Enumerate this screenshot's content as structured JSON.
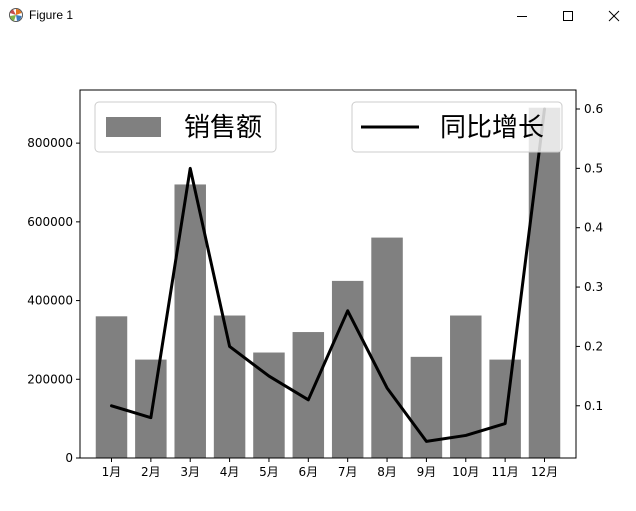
{
  "window": {
    "title": "Figure 1",
    "icon": "matplotlib-icon",
    "buttons": {
      "minimize": "minimize-icon",
      "maximize": "maximize-icon",
      "close": "close-icon"
    }
  },
  "chart_data": {
    "type": "bar",
    "title": "",
    "xlabel": "",
    "ylabel": "",
    "categories": [
      "1月",
      "2月",
      "3月",
      "4月",
      "5月",
      "6月",
      "7月",
      "8月",
      "9月",
      "10月",
      "11月",
      "12月"
    ],
    "series": [
      {
        "name": "销售额",
        "type": "bar",
        "axis": "left",
        "color": "#808080",
        "values": [
          360000,
          250000,
          695000,
          362000,
          268000,
          320000,
          450000,
          560000,
          257000,
          362000,
          250000,
          890000
        ]
      },
      {
        "name": "同比增长",
        "type": "line",
        "axis": "right",
        "color": "#000000",
        "values": [
          0.1,
          0.08,
          0.5,
          0.2,
          0.15,
          0.11,
          0.26,
          0.13,
          0.04,
          0.05,
          0.07,
          0.6
        ]
      }
    ],
    "ylim_left": [
      0,
      935000
    ],
    "yticks_left": [
      "0",
      "200000",
      "400000",
      "600000",
      "800000"
    ],
    "ylim_right": [
      0.012,
      0.632
    ],
    "yticks_right": [
      "0.1",
      "0.2",
      "0.3",
      "0.4",
      "0.5",
      "0.6"
    ],
    "grid": false,
    "legend_left": {
      "placement": "upper-left",
      "label": "销售额"
    },
    "legend_right": {
      "placement": "upper-right",
      "label": "同比增长"
    }
  }
}
